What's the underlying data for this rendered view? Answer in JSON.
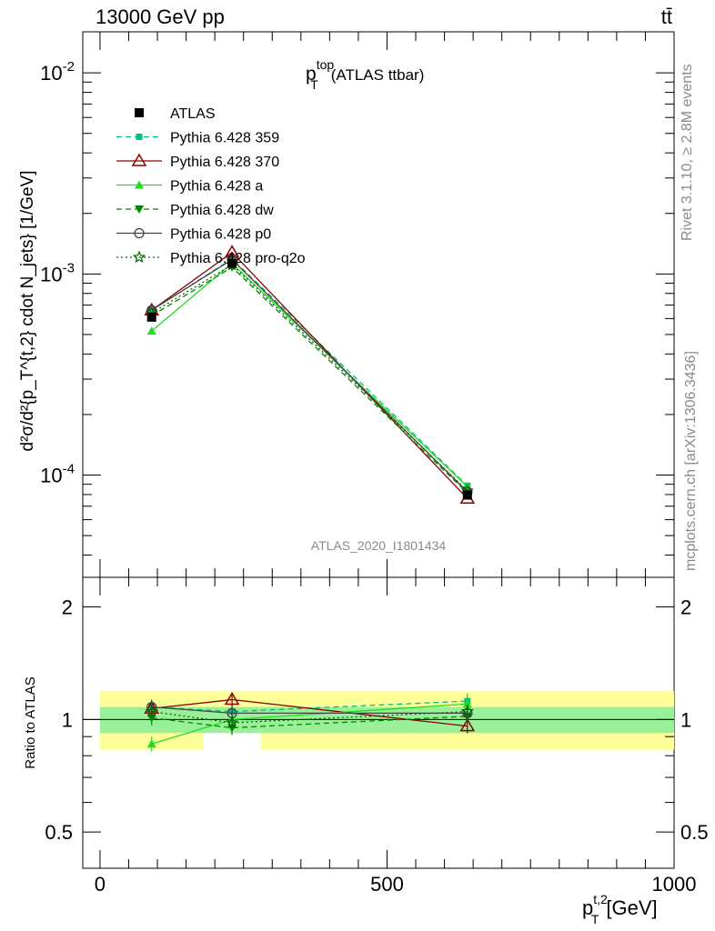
{
  "header": {
    "left": "13000 GeV pp",
    "right": "tt̄"
  },
  "plot_title": {
    "main": "p",
    "sub": "T",
    "sup": "top",
    "rest": "(ATLAS ttbar)"
  },
  "y_axis_label": "d²σ/d²{p_T^{t,2} cdot N_jets} [1/GeV]",
  "x_axis_label": {
    "main": "p",
    "sub": "T",
    "sup": "t,2",
    "unit": "[GeV]"
  },
  "ratio_axis_label": "Ratio to ATLAS",
  "watermark": "ATLAS_2020_I1801434",
  "side_texts": {
    "rivet": "Rivet 3.1.10, ≥ 2.8M events",
    "source": "mcplots.cern.ch [arXiv:1306.3436]"
  },
  "chart_data": [
    {
      "type": "line",
      "scale": "log",
      "xlim": [
        -30,
        1000
      ],
      "ylim": [
        3.1e-05,
        0.016
      ],
      "ytick_labels": [
        "10^-2",
        "10^-3",
        "10^-4"
      ],
      "x": [
        90,
        230,
        640
      ],
      "data": {
        "name": "ATLAS",
        "values": [
          0.00061,
          0.00113,
          7.95e-05
        ]
      },
      "series": [
        {
          "name": "Pythia 6.428 359",
          "color": "#00c080",
          "dash": "6,4",
          "marker": "square-small",
          "values": [
            0.00066,
            0.00119,
            8.85e-05
          ]
        },
        {
          "name": "Pythia 6.428 370",
          "color": "#8b0000",
          "dash": "",
          "marker": "triangle-open",
          "values": [
            0.00066,
            0.00128,
            7.65e-05
          ]
        },
        {
          "name": "Pythia 6.428 a",
          "color": "#22dd22",
          "dash": "",
          "marker": "triangle-filled",
          "values": [
            0.00052,
            0.00113,
            8.75e-05
          ]
        },
        {
          "name": "Pythia 6.428 dw",
          "color": "#008800",
          "dash": "6,4",
          "marker": "triangle-down",
          "values": [
            0.00062,
            0.00108,
            8.15e-05
          ]
        },
        {
          "name": "Pythia 6.428 p0",
          "color": "#444444",
          "dash": "",
          "marker": "circle-open",
          "values": [
            0.00066,
            0.00118,
            8.25e-05
          ]
        },
        {
          "name": "Pythia 6.428 pro-q2o",
          "color": "#006600",
          "dash": "2,3",
          "marker": "star",
          "values": [
            0.00064,
            0.00111,
            8.35e-05
          ]
        }
      ]
    },
    {
      "type": "line",
      "role": "ratio",
      "xlim": [
        -30,
        1000
      ],
      "ylim": [
        0.4,
        2.4
      ],
      "ytick_labels": [
        "0.5",
        "1",
        "2"
      ],
      "xtick_labels": [
        "0",
        "500",
        "1000"
      ],
      "x": [
        90,
        230,
        640
      ],
      "bands": [
        {
          "x0": 0,
          "x1": 180,
          "inner": [
            0.92,
            1.08
          ],
          "outer": [
            0.83,
            1.19
          ]
        },
        {
          "x0": 180,
          "x1": 280,
          "inner": [
            0.92,
            1.08
          ],
          "outer": [
            0.94,
            1.19
          ]
        },
        {
          "x0": 280,
          "x1": 1000,
          "inner": [
            0.92,
            1.08
          ],
          "outer": [
            0.83,
            1.19
          ]
        }
      ],
      "series": [
        {
          "name": "Pythia 6.428 359",
          "values": [
            1.08,
            1.05,
            1.12
          ]
        },
        {
          "name": "Pythia 6.428 370",
          "values": [
            1.07,
            1.13,
            0.96
          ]
        },
        {
          "name": "Pythia 6.428 a",
          "values": [
            0.86,
            1.0,
            1.1
          ]
        },
        {
          "name": "Pythia 6.428 dw",
          "values": [
            1.01,
            0.95,
            1.02
          ]
        },
        {
          "name": "Pythia 6.428 p0",
          "values": [
            1.08,
            1.04,
            1.04
          ]
        },
        {
          "name": "Pythia 6.428 pro-q2o",
          "values": [
            1.05,
            0.98,
            1.05
          ]
        }
      ]
    }
  ]
}
